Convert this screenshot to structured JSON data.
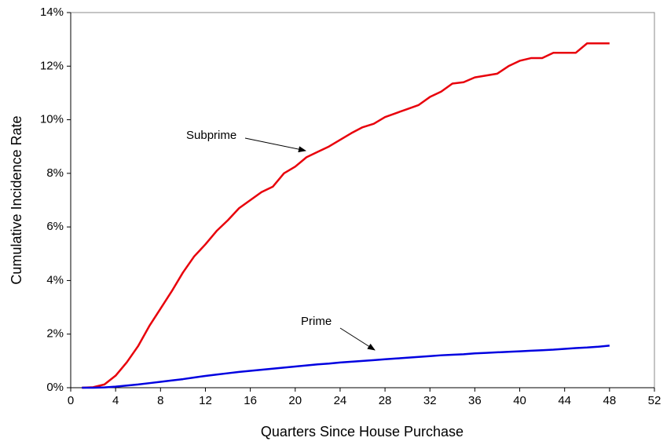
{
  "chart_data": {
    "type": "line",
    "xlabel": "Quarters Since House Purchase",
    "ylabel": "Cumulative Incidence Rate",
    "x": [
      1,
      2,
      3,
      4,
      5,
      6,
      7,
      8,
      9,
      10,
      11,
      12,
      13,
      14,
      15,
      16,
      17,
      18,
      19,
      20,
      21,
      22,
      23,
      24,
      25,
      26,
      27,
      28,
      29,
      30,
      31,
      32,
      33,
      34,
      35,
      36,
      37,
      38,
      39,
      40,
      41,
      42,
      43,
      44,
      45,
      46,
      47,
      48
    ],
    "series": [
      {
        "name": "Subprime",
        "color": "#e8000b",
        "values": [
          0,
          0.02,
          0.12,
          0.45,
          0.95,
          1.55,
          2.3,
          2.95,
          3.6,
          4.3,
          4.9,
          5.35,
          5.85,
          6.25,
          6.7,
          7.0,
          7.3,
          7.5,
          8.0,
          8.25,
          8.6,
          8.8,
          9.0,
          9.25,
          9.5,
          9.72,
          9.85,
          10.1,
          10.25,
          10.4,
          10.55,
          10.85,
          11.05,
          11.35,
          11.4,
          11.58,
          11.65,
          11.72,
          12.0,
          12.2,
          12.3,
          12.3,
          12.5,
          12.5,
          12.5,
          12.85,
          12.85,
          12.85
        ]
      },
      {
        "name": "Prime",
        "color": "#0000e0",
        "values": [
          0,
          0,
          0.01,
          0.04,
          0.08,
          0.12,
          0.17,
          0.22,
          0.27,
          0.32,
          0.38,
          0.44,
          0.49,
          0.54,
          0.59,
          0.63,
          0.67,
          0.71,
          0.75,
          0.79,
          0.83,
          0.87,
          0.9,
          0.94,
          0.97,
          1.0,
          1.03,
          1.06,
          1.09,
          1.12,
          1.15,
          1.18,
          1.21,
          1.23,
          1.25,
          1.28,
          1.3,
          1.32,
          1.34,
          1.36,
          1.38,
          1.4,
          1.42,
          1.45,
          1.48,
          1.5,
          1.53,
          1.57
        ]
      }
    ],
    "xlim": [
      0,
      52
    ],
    "xticks": [
      0,
      4,
      8,
      12,
      16,
      20,
      24,
      28,
      32,
      36,
      40,
      44,
      48,
      52
    ],
    "ylim": [
      0,
      14
    ],
    "yticks": [
      {
        "value": 0,
        "label": "0%"
      },
      {
        "value": 2,
        "label": "2%"
      },
      {
        "value": 4,
        "label": "4%"
      },
      {
        "value": 6,
        "label": "6%"
      },
      {
        "value": 8,
        "label": "8%"
      },
      {
        "value": 10,
        "label": "10%"
      },
      {
        "value": 12,
        "label": "12%"
      },
      {
        "value": 14,
        "label": "14%"
      }
    ],
    "grid": false
  }
}
